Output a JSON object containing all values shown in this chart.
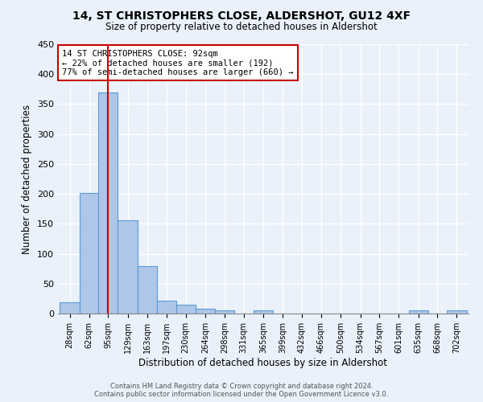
{
  "title": "14, ST CHRISTOPHERS CLOSE, ALDERSHOT, GU12 4XF",
  "subtitle": "Size of property relative to detached houses in Aldershot",
  "xlabel": "Distribution of detached houses by size in Aldershot",
  "ylabel": "Number of detached properties",
  "bin_labels": [
    "28sqm",
    "62sqm",
    "95sqm",
    "129sqm",
    "163sqm",
    "197sqm",
    "230sqm",
    "264sqm",
    "298sqm",
    "331sqm",
    "365sqm",
    "399sqm",
    "432sqm",
    "466sqm",
    "500sqm",
    "534sqm",
    "567sqm",
    "601sqm",
    "635sqm",
    "668sqm",
    "702sqm"
  ],
  "bar_heights": [
    19,
    202,
    370,
    156,
    79,
    22,
    15,
    8,
    5,
    0,
    5,
    0,
    0,
    0,
    0,
    0,
    0,
    0,
    5,
    0,
    5
  ],
  "bar_color": "#aec6e8",
  "bar_edge_color": "#5b9bd5",
  "property_size_label": "14 ST CHRISTOPHERS CLOSE: 92sqm",
  "annotation_line1": "← 22% of detached houses are smaller (192)",
  "annotation_line2": "77% of semi-detached houses are larger (660) →",
  "vline_color": "#cc0000",
  "vline_x": 95,
  "annotation_box_color": "#ffffff",
  "annotation_box_edge": "#cc0000",
  "ylim": [
    0,
    450
  ],
  "yticks": [
    0,
    50,
    100,
    150,
    200,
    250,
    300,
    350,
    400,
    450
  ],
  "footer_line1": "Contains HM Land Registry data © Crown copyright and database right 2024.",
  "footer_line2": "Contains public sector information licensed under the Open Government Licence v3.0.",
  "bg_color": "#eaf1fb",
  "plot_bg_color": "#eaf1fb",
  "grid_color": "#ffffff"
}
